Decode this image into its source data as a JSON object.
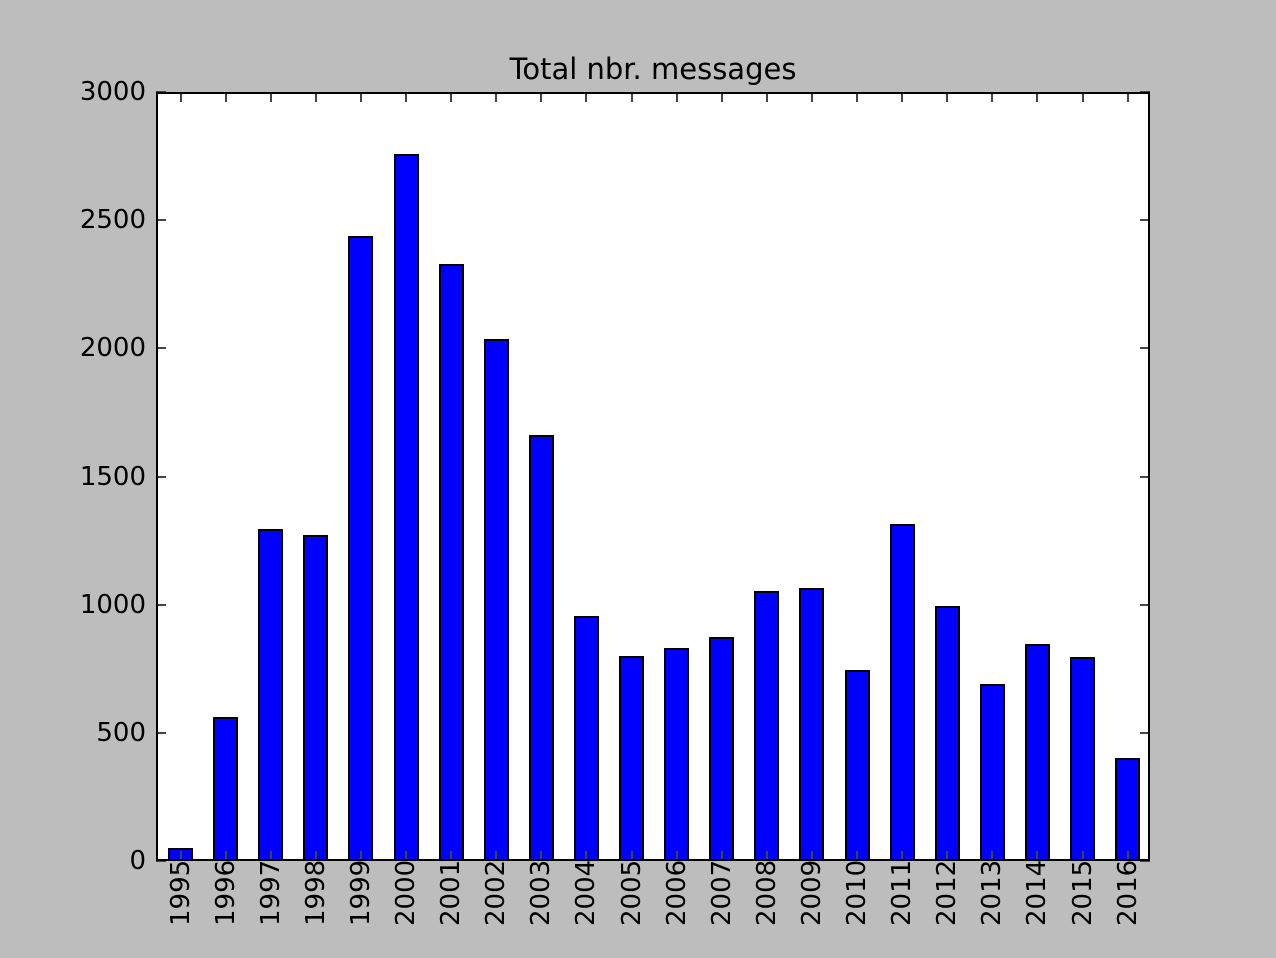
{
  "window": {
    "background": "#bdbdbd"
  },
  "chart_data": {
    "type": "bar",
    "title": "Total nbr. messages",
    "xlabel": "",
    "ylabel": "",
    "categories": [
      "1995",
      "1996",
      "1997",
      "1998",
      "1999",
      "2000",
      "2001",
      "2002",
      "2003",
      "2004",
      "2005",
      "2006",
      "2007",
      "2008",
      "2009",
      "2010",
      "2011",
      "2012",
      "2013",
      "2014",
      "2015",
      "2016"
    ],
    "values": [
      50,
      560,
      1295,
      1270,
      2440,
      2760,
      2330,
      2035,
      1660,
      955,
      800,
      830,
      875,
      1055,
      1065,
      745,
      1315,
      995,
      690,
      845,
      795,
      400
    ],
    "ylim": [
      0,
      3000
    ],
    "yticks": [
      0,
      500,
      1000,
      1500,
      2000,
      2500,
      3000
    ],
    "x_tick_rotation": -90,
    "grid": false,
    "legend": null,
    "colors": {
      "figure_background": "#bdbdbd",
      "plot_background": "#ffffff",
      "bar_fill": "#0000ff",
      "bar_edge": "#000000",
      "frame": "#000000",
      "tick_mark": "#444444",
      "text": "#000000"
    }
  }
}
